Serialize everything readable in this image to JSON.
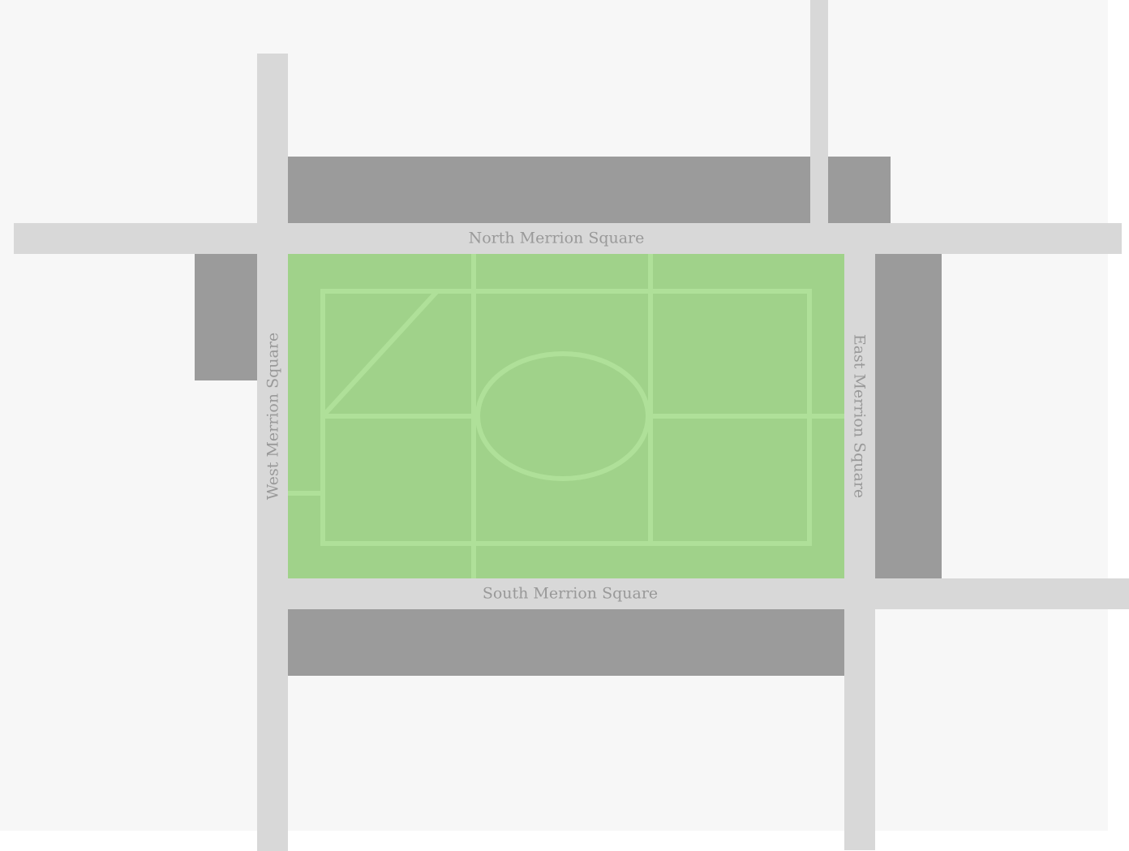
{
  "map": {
    "colors": {
      "ground": "#f7f7f7",
      "road": "#d8d8d8",
      "building": "#9b9b9b",
      "park": "#a0d28a",
      "path": "#afe099",
      "label": "#999999"
    },
    "streets": {
      "north": "North Merrion Square",
      "south": "South Merrion Square",
      "west": "West Merrion Square",
      "east": "East Merrion Square"
    }
  }
}
